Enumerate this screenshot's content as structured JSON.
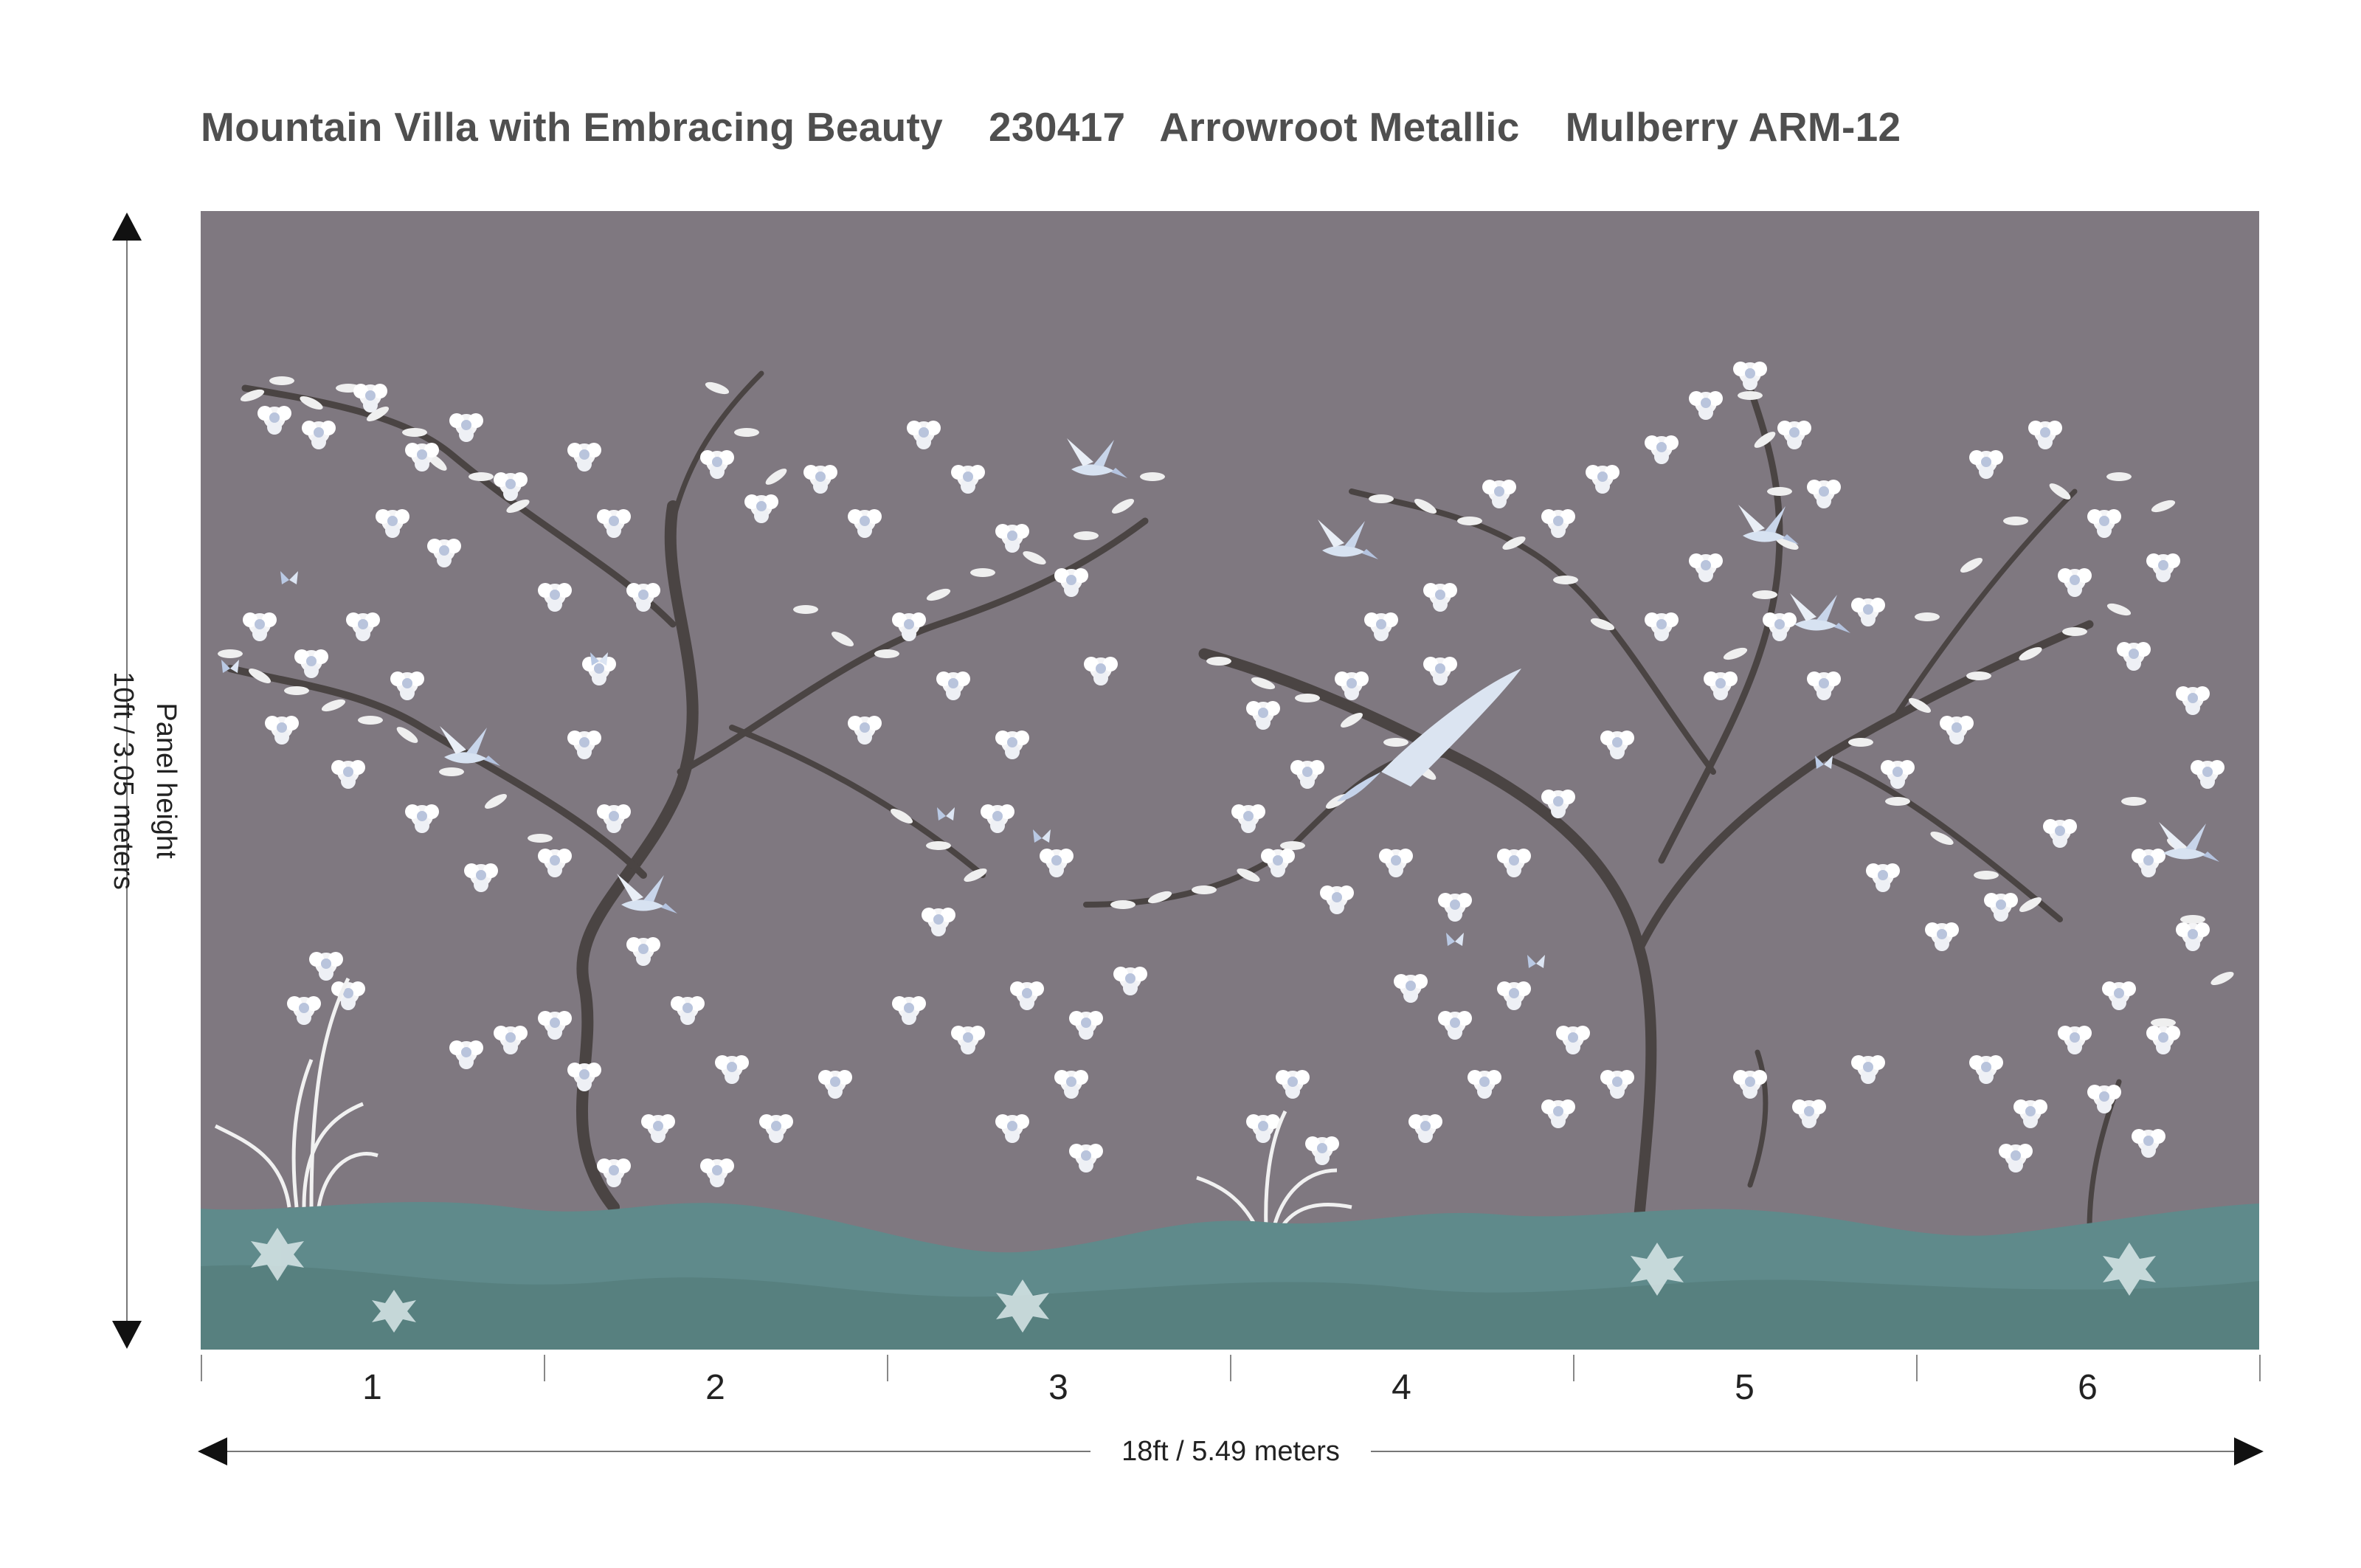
{
  "title": {
    "name": "Mountain Villa with Embracing Beauty",
    "code": "230417",
    "line": "Arrowroot Metallic",
    "colorway": "Mulberry ARM-12"
  },
  "dimensions": {
    "height_caption": "Panel height",
    "height_value": "10ft / 3.05 meters",
    "width_value": "18ft / 5.49 meters"
  },
  "panels": [
    "1",
    "2",
    "3",
    "4",
    "5",
    "6"
  ],
  "colors": {
    "background": "#7f7880",
    "ground": "#5f8a8b",
    "blossom": "#f4f4f6",
    "blossom_center": "#b9c4dc",
    "branch": "#4a4443",
    "arrow": "#111111"
  }
}
